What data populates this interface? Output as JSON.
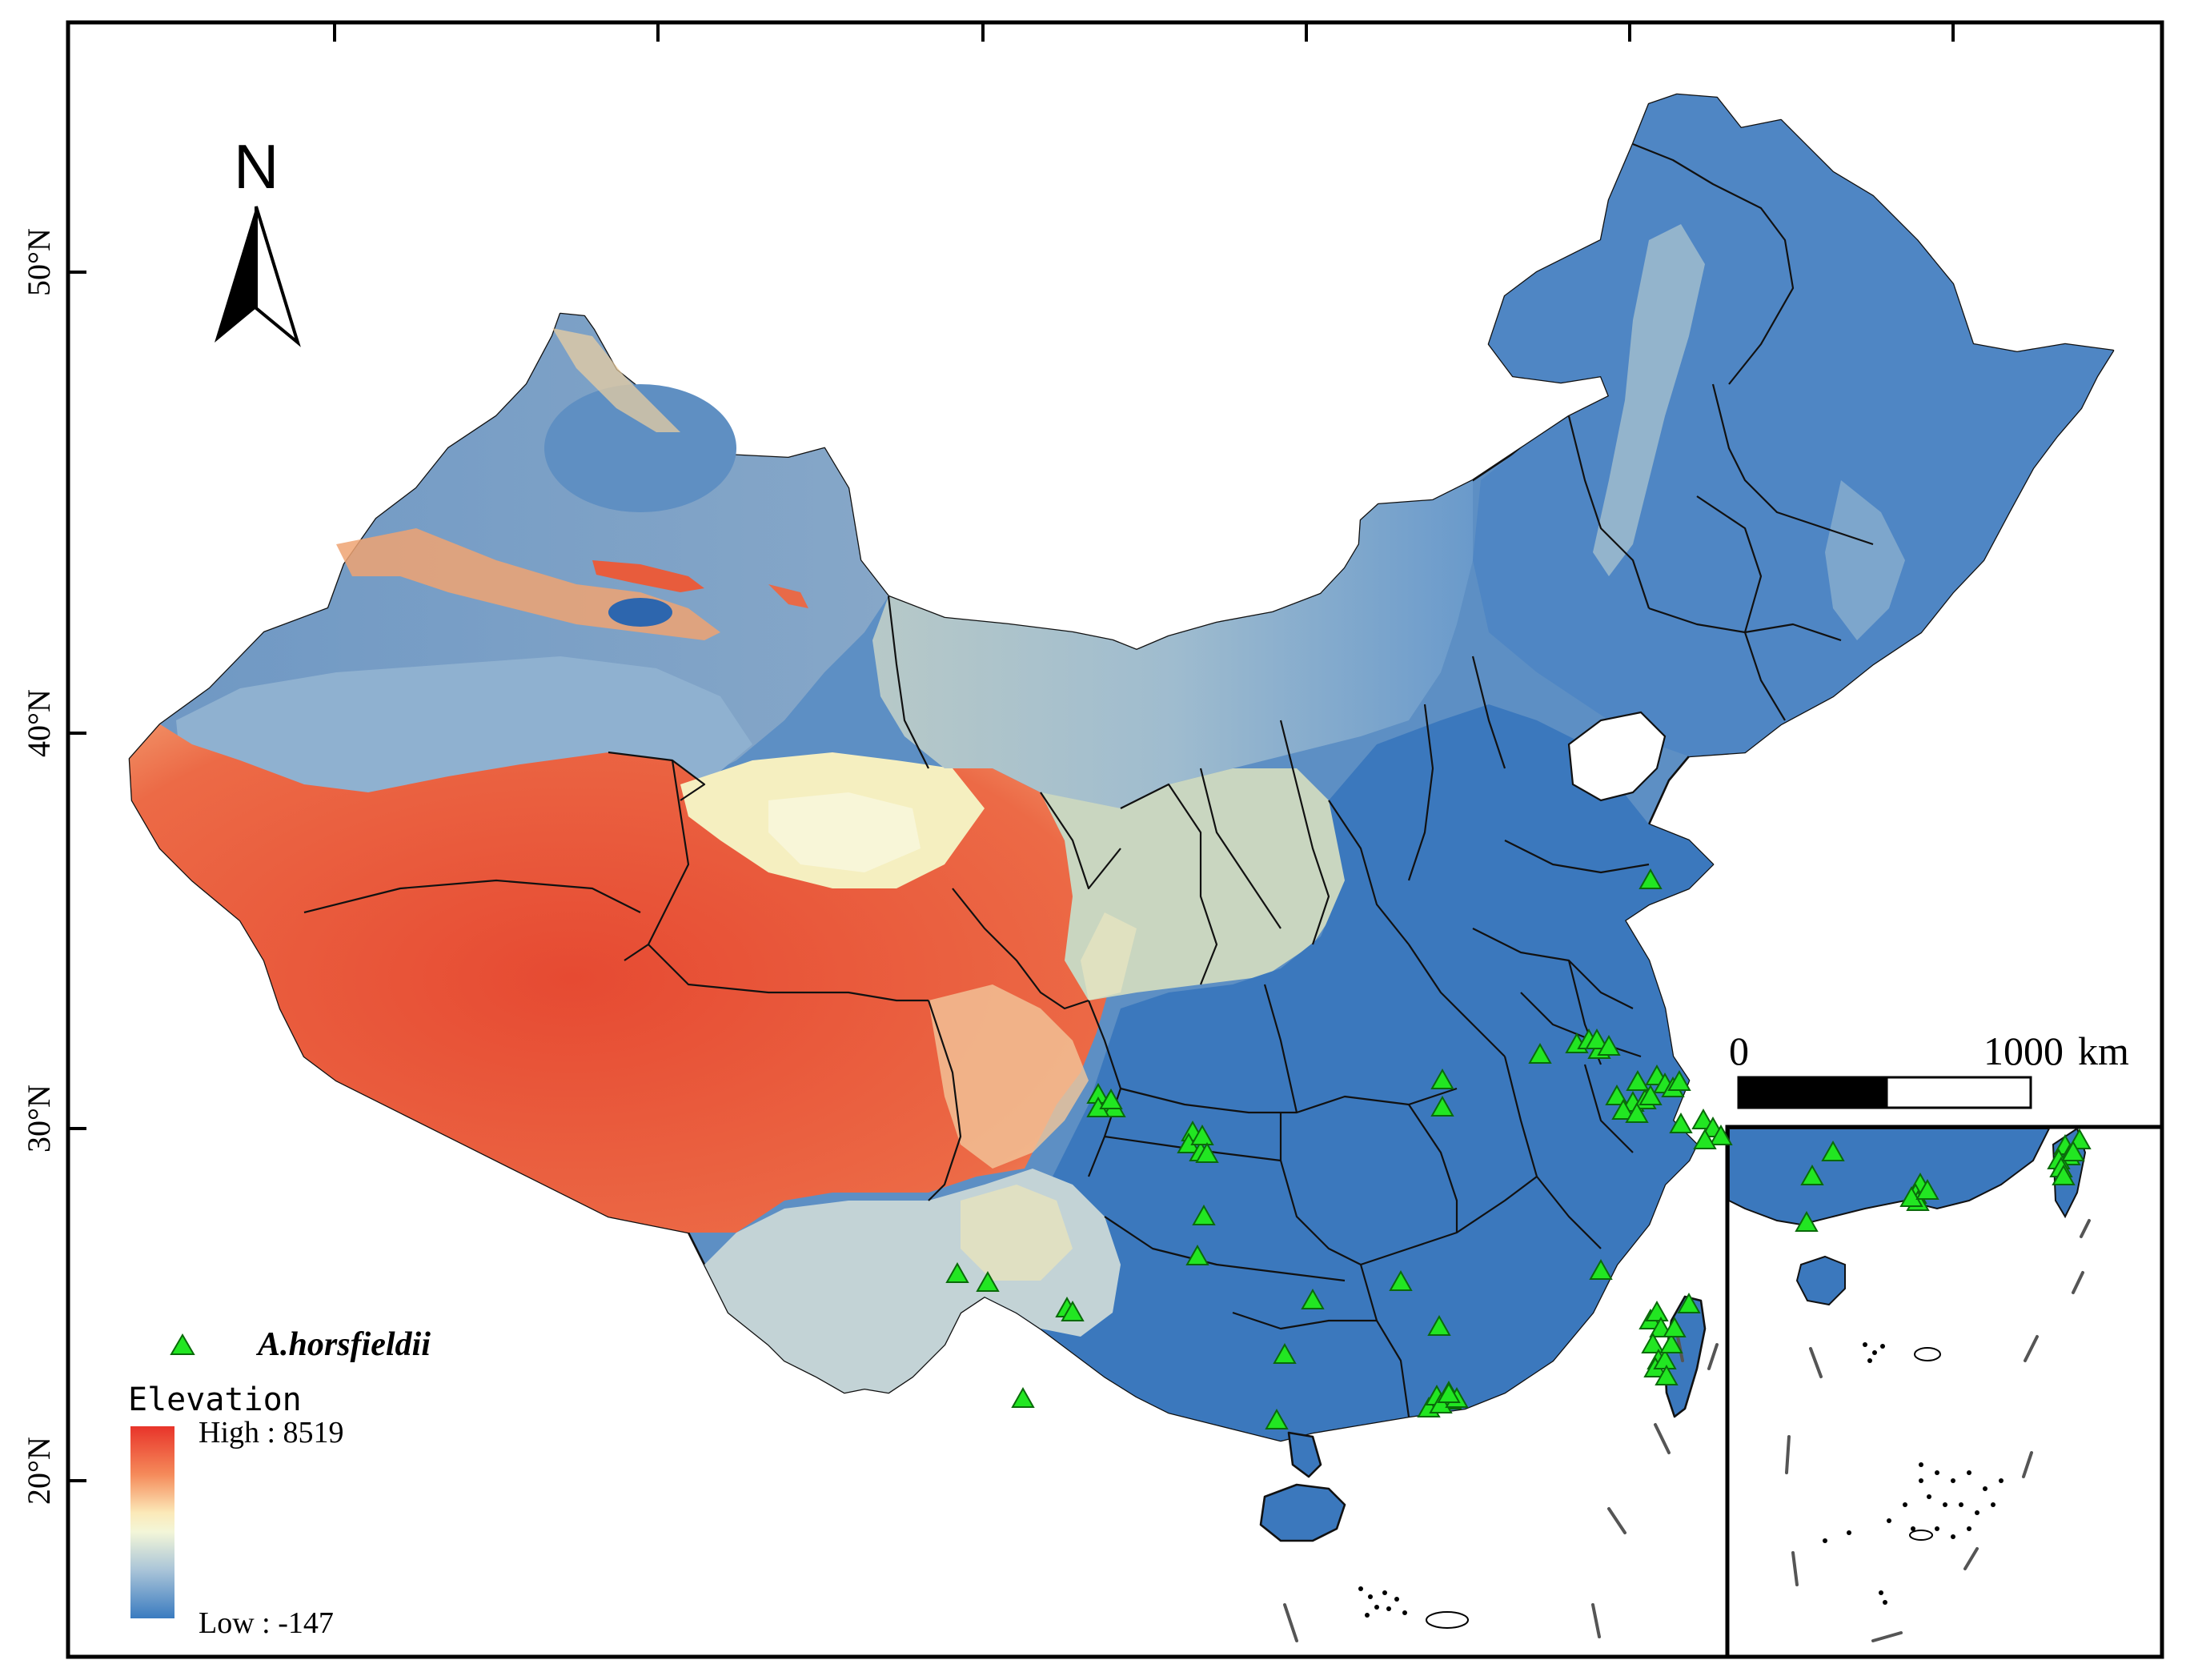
{
  "map": {
    "latitude_labels": [
      "50°N",
      "40°N",
      "30°N",
      "20°N"
    ],
    "north_arrow": {
      "label": "N",
      "icon": "north-arrow-icon"
    },
    "legend": {
      "species_label": "A.horsfieldii",
      "species_symbol": "green-triangle-icon",
      "elevation_title": "Elevation",
      "high_label": "High : 8519",
      "low_label": "Low : -147",
      "high_value": 8519,
      "low_value": -147,
      "ramp_colors": [
        "#e8342a",
        "#f58a5a",
        "#fbe9b8",
        "#f3f6d8",
        "#a9c4d8",
        "#3a7bc0"
      ]
    },
    "scale_bar": {
      "start_label": "0",
      "end_label": "1000",
      "unit": "km"
    },
    "colors": {
      "high_elevation": "#e8402e",
      "mid_elevation": "#f2eab2",
      "low_elevation": "#3d7ec1",
      "occurrence_marker": "#22e622"
    }
  }
}
